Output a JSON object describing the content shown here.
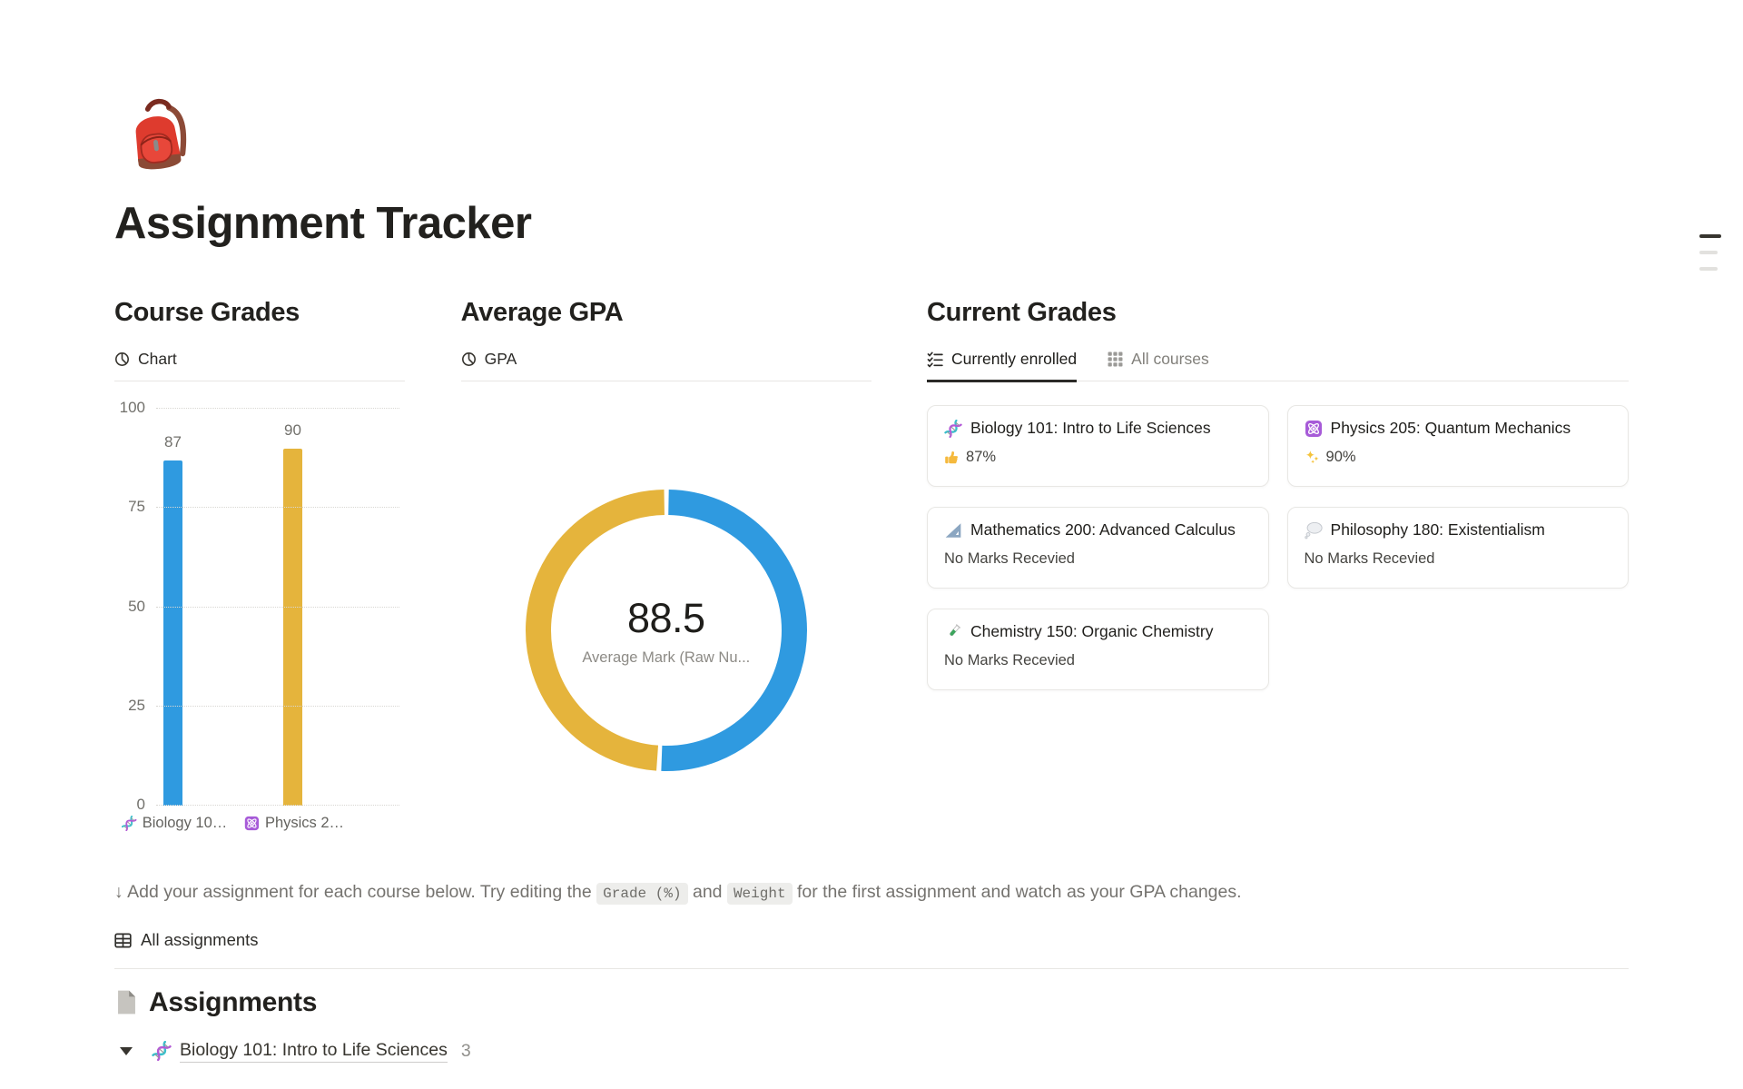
{
  "page": {
    "icon": "backpack-emoji",
    "title": "Assignment Tracker"
  },
  "course_grades": {
    "heading": "Course Grades",
    "view_icon": "pie-chart-icon",
    "view_label": "Chart"
  },
  "average_gpa": {
    "heading": "Average GPA",
    "view_icon": "pie-chart-icon",
    "view_label": "GPA",
    "center_value": "88.5",
    "center_caption": "Average Mark (Raw Nu..."
  },
  "current_grades": {
    "heading": "Current Grades",
    "tabs": [
      {
        "label": "Currently enrolled",
        "icon": "checklist-icon",
        "active": true
      },
      {
        "label": "All courses",
        "icon": "grid-icon",
        "active": false
      }
    ],
    "cards": [
      {
        "icon": "dna-emoji",
        "title": "Biology 101: Intro to Life Sciences",
        "status_icon": "thumbs-up-emoji",
        "status": "87%"
      },
      {
        "icon": "atom-emoji",
        "title": "Physics 205: Quantum Mechanics",
        "status_icon": "sparkles-emoji",
        "status": "90%"
      },
      {
        "icon": "triangular-ruler-emoji",
        "title": "Mathematics 200: Advanced Calculus",
        "status_icon": "",
        "status": "No Marks Recevied"
      },
      {
        "icon": "thought-balloon-emoji",
        "title": "Philosophy 180: Existentialism",
        "status_icon": "",
        "status": "No Marks Recevied"
      },
      {
        "icon": "test-tube-emoji",
        "title": "Chemistry 150: Organic Chemistry",
        "status_icon": "",
        "status": "No Marks Recevied"
      }
    ]
  },
  "note": {
    "prefix": "↓ Add your assignment for each course below. Try editing the ",
    "code1": "Grade (%)",
    "middle": " and ",
    "code2": "Weight",
    "suffix": " for the first assignment and watch as your GPA changes."
  },
  "links": {
    "all_assignments": "All assignments",
    "icon": "table-icon"
  },
  "assignments": {
    "icon": "document-icon",
    "heading": "Assignments",
    "groups": [
      {
        "icon": "dna-emoji",
        "title": "Biology 101: Intro to Life Sciences",
        "count": "3"
      }
    ]
  },
  "chart_data": [
    {
      "type": "bar",
      "title": "Course Grades",
      "categories": [
        "Biology 10…",
        "Physics 2…"
      ],
      "category_icons": [
        "dna-emoji",
        "atom-emoji"
      ],
      "values": [
        87,
        90
      ],
      "value_labels": [
        "87",
        "90"
      ],
      "colors": [
        "#2F9AE0",
        "#E5B43C"
      ],
      "xlabel": "",
      "ylabel": "",
      "ylim": [
        0,
        100
      ],
      "yticks": [
        0,
        25,
        50,
        75,
        100
      ],
      "grid": "horizontal-dotted",
      "legend": "none"
    },
    {
      "type": "pie",
      "donut": true,
      "title": "Average GPA",
      "center_value": "88.5",
      "center_label": "Average Mark (Raw Nu...",
      "start_angle_deg": 0,
      "direction": "clockwise",
      "slices": [
        {
          "name": "Physics 205: Quantum Mechanics",
          "value": 90,
          "color": "#2F9AE0"
        },
        {
          "name": "Biology 101: Intro to Life Sciences",
          "value": 87,
          "color": "#E5B43C"
        }
      ]
    }
  ]
}
